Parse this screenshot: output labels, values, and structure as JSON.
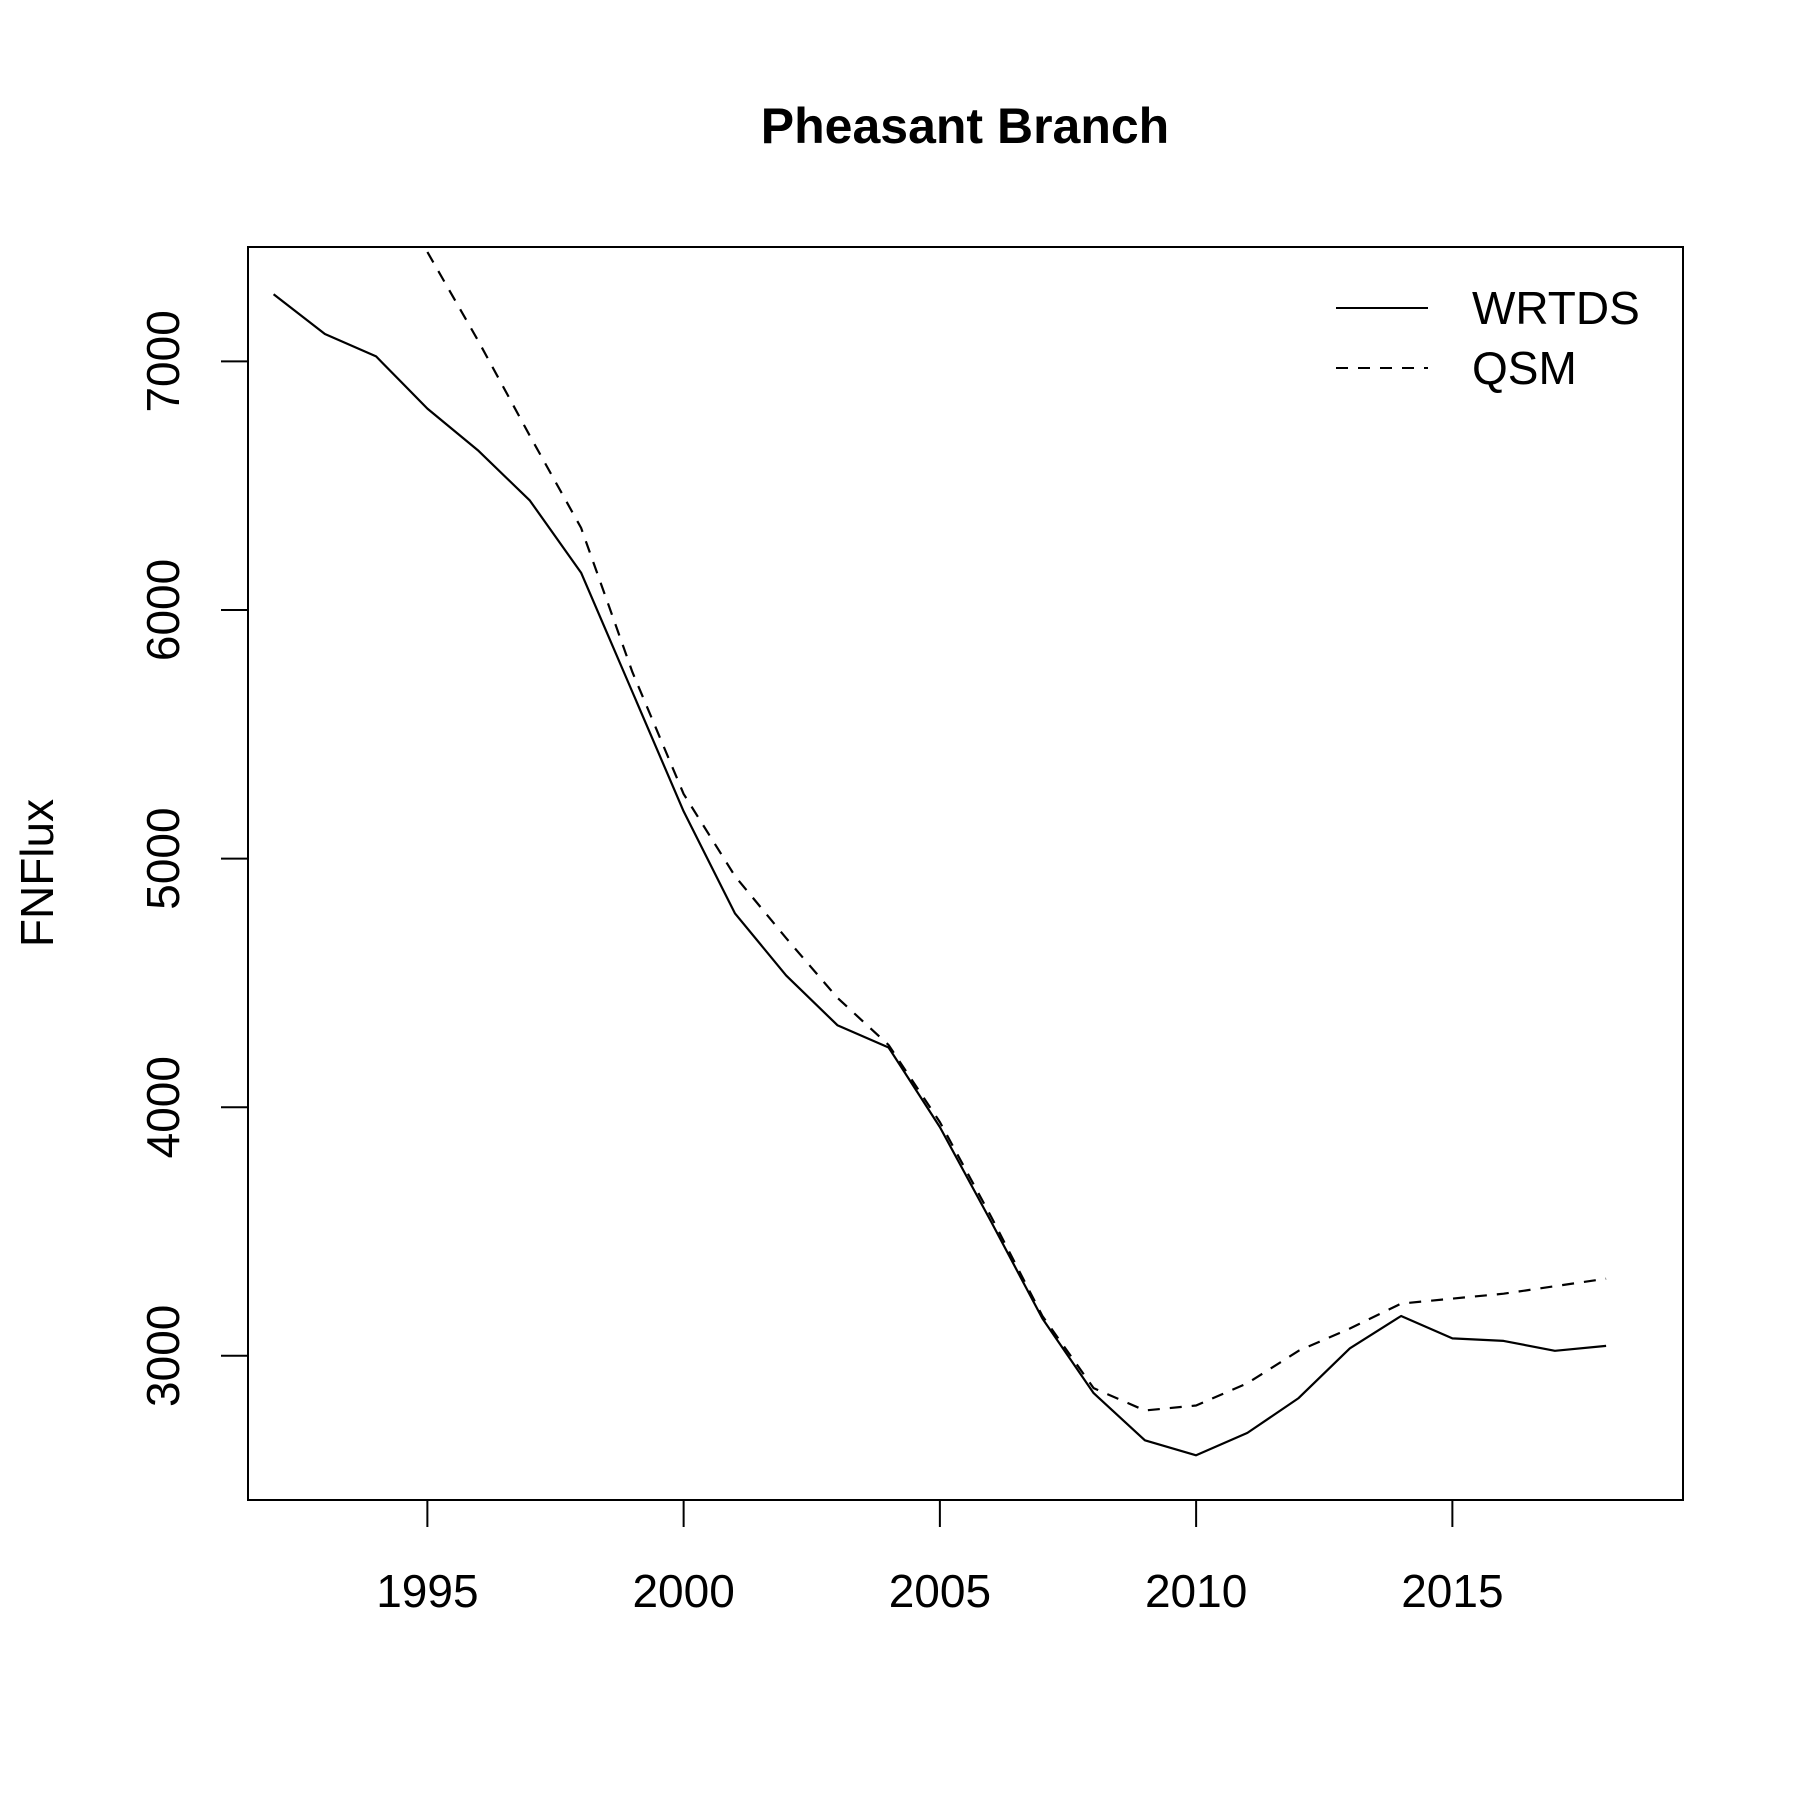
{
  "chart_data": {
    "type": "line",
    "title": "Pheasant Branch",
    "xlabel": "",
    "ylabel": "FNFlux",
    "xlim": [
      1991.5,
      2019.5
    ],
    "ylim": [
      2420,
      7460
    ],
    "x_ticks": [
      1995,
      2000,
      2005,
      2010,
      2015
    ],
    "y_ticks": [
      3000,
      4000,
      5000,
      6000,
      7000
    ],
    "grid": false,
    "legend_position": "top-right",
    "x": [
      1992,
      1993,
      1994,
      1995,
      1996,
      1997,
      1998,
      1999,
      2000,
      2001,
      2002,
      2003,
      2004,
      2005,
      2006,
      2007,
      2008,
      2009,
      2010,
      2011,
      2012,
      2013,
      2014,
      2015,
      2016,
      2017,
      2018
    ],
    "series": [
      {
        "name": "WRTDS",
        "line_style": "solid",
        "color": "#000000",
        "values": [
          7270,
          7110,
          7020,
          6810,
          6640,
          6440,
          6150,
          5670,
          5190,
          4780,
          4530,
          4330,
          4240,
          3920,
          3540,
          3150,
          2850,
          2660,
          2600,
          2690,
          2830,
          3030,
          3160,
          3070,
          3060,
          3020,
          3040
        ]
      },
      {
        "name": "QSM",
        "line_style": "dashed",
        "color": "#000000",
        "values": [
          null,
          null,
          null,
          7440,
          7080,
          6700,
          6330,
          5750,
          5260,
          4930,
          4680,
          4440,
          4250,
          3940,
          3560,
          3160,
          2870,
          2780,
          2800,
          2890,
          3020,
          3110,
          3210,
          3230,
          3250,
          3280,
          3310
        ]
      }
    ]
  }
}
